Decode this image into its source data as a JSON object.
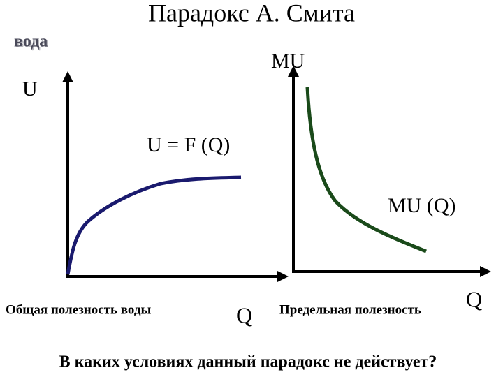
{
  "title": "Парадокс А. Смита",
  "tag": "вода",
  "left_graph": {
    "y_axis_label": "U",
    "x_axis_label": "Q",
    "curve_label": "U = F (Q)",
    "caption": "Общая полезность воды"
  },
  "right_graph": {
    "y_axis_label": "MU",
    "x_axis_label": "Q",
    "curve_label": "MU (Q)",
    "caption": "Предельная полезность"
  },
  "question": "В каких условиях данный парадокс не действует?"
}
